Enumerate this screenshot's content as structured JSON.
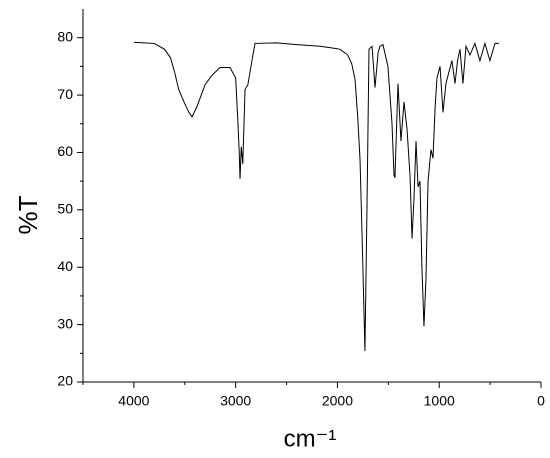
{
  "chart_data": {
    "type": "line",
    "xlabel": "cm⁻¹",
    "ylabel": "%T",
    "xlim": [
      4500,
      0
    ],
    "xticks": [
      4000,
      3000,
      2000,
      1000,
      0
    ],
    "xminorticks": [
      4500,
      3500,
      2500,
      1500,
      500
    ],
    "ylim": [
      20,
      85
    ],
    "yticks": [
      20,
      30,
      40,
      50,
      60,
      70,
      80
    ],
    "yminorticks": [
      25,
      35,
      45,
      55,
      65,
      75
    ],
    "series": [
      {
        "color": "#000000",
        "x": [
          4000,
          3900,
          3800,
          3700,
          3640,
          3600,
          3560,
          3500,
          3460,
          3429,
          3380,
          3301,
          3230,
          3154,
          3056,
          3000,
          2980,
          2965,
          2957,
          2945,
          2930,
          2908,
          2880,
          2840,
          2810,
          2600,
          2400,
          2170,
          2050,
          1975,
          1900,
          1860,
          1827,
          1800,
          1778,
          1750,
          1730,
          1710,
          1690,
          1660,
          1631,
          1600,
          1582,
          1553,
          1504,
          1464,
          1444,
          1435,
          1420,
          1405,
          1376,
          1346,
          1316,
          1287,
          1267,
          1248,
          1228,
          1208,
          1189,
          1170,
          1150,
          1130,
          1110,
          1081,
          1061,
          1040,
          1022,
          992,
          963,
          934,
          905,
          875,
          845,
          820,
          796,
          767,
          737,
          698,
          649,
          600,
          551,
          502,
          452,
          413
        ],
        "values": [
          79.2,
          79.1,
          79.0,
          78.0,
          76.5,
          74.0,
          71.0,
          68.5,
          67.0,
          66.2,
          68.0,
          71.8,
          73.5,
          74.8,
          74.8,
          73.0,
          66.0,
          60.0,
          55.4,
          61.0,
          58.0,
          71.0,
          71.8,
          76.0,
          79.0,
          79.1,
          78.8,
          78.5,
          78.2,
          78.0,
          77.0,
          75.5,
          72.7,
          66.0,
          58.7,
          40.0,
          25.4,
          50.0,
          78.0,
          78.5,
          71.3,
          77.5,
          78.5,
          78.8,
          75.0,
          65.0,
          56.0,
          55.6,
          64.0,
          72.0,
          62.0,
          68.8,
          64.0,
          56.0,
          45.0,
          52.0,
          62.0,
          54.0,
          55.0,
          40.0,
          29.7,
          38.0,
          55.0,
          60.5,
          59.0,
          68.0,
          73.0,
          75.0,
          67.0,
          72.0,
          74.0,
          76.0,
          72.0,
          76.0,
          78.0,
          72.0,
          78.5,
          77.0,
          79.0,
          76.0,
          79.0,
          76.0,
          79.0,
          79.0
        ]
      }
    ]
  }
}
